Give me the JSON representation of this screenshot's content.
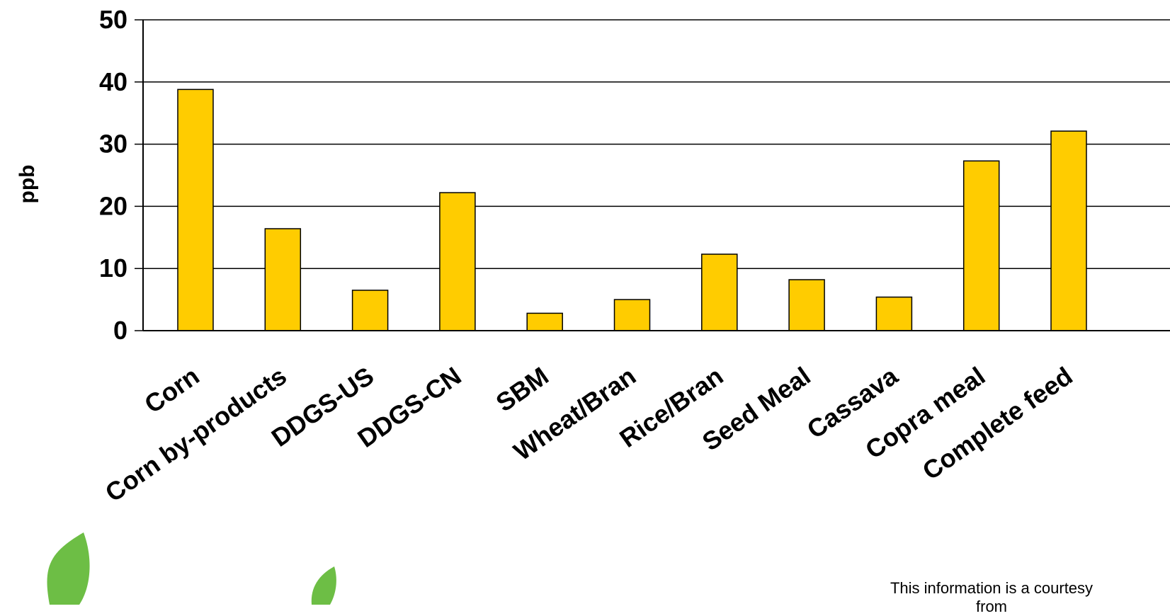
{
  "chart_data": {
    "type": "bar",
    "ylabel": "ppb",
    "xlabel": "",
    "ylim": [
      0,
      50
    ],
    "yticks": [
      "0",
      "10",
      "20",
      "30",
      "40",
      "50"
    ],
    "grid": true,
    "bar_color": "#FFCC00",
    "categories": [
      "Corn",
      "Corn by-products",
      "DDGS-US",
      "DDGS-CN",
      "SBM",
      "Wheat/Bran",
      "Rice/Bran",
      "Seed Meal",
      "Cassava",
      "Copra meal",
      "Complete feed"
    ],
    "values": [
      38.8,
      16.4,
      6.5,
      22.2,
      2.8,
      5.0,
      12.3,
      8.2,
      5.4,
      27.3,
      32.1
    ]
  },
  "footer": {
    "credit_line1": "This information is a courtesy",
    "credit_line2": "from"
  },
  "decor": {
    "leaf_color": "#6DBE45",
    "leaf_icon": "leaf-icon"
  }
}
